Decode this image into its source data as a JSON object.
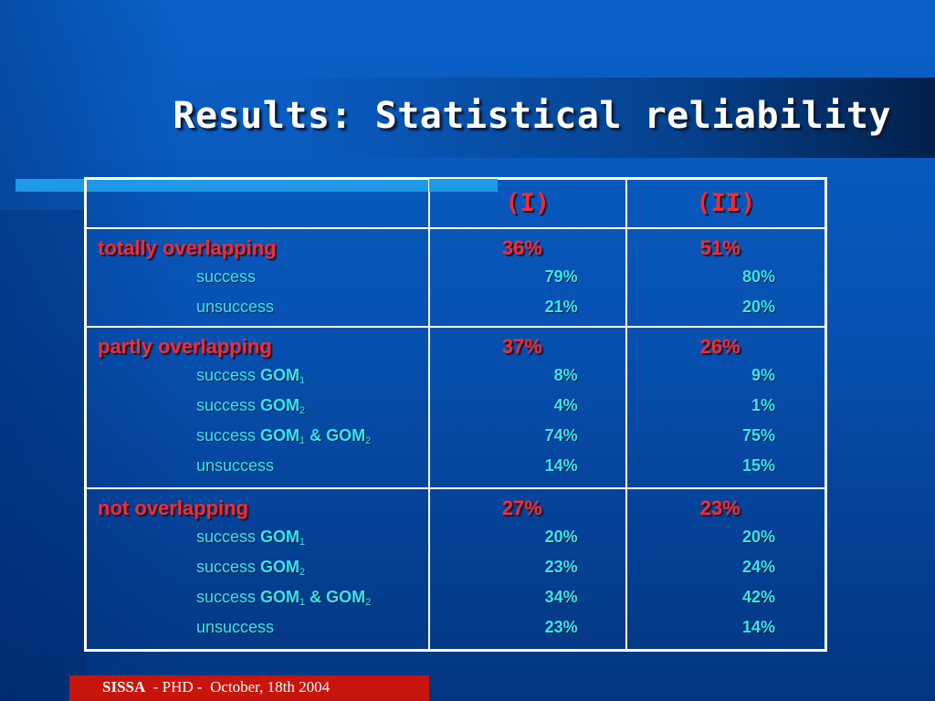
{
  "slide": {
    "title": "Results: Statistical reliability",
    "footer_org": "SISSA",
    "footer_rest": "  - PHD -  October, 18th 2004"
  },
  "table": {
    "headers": [
      "",
      "(I)",
      "(II)"
    ],
    "sections": [
      {
        "label": "totally overlapping",
        "I": "36%",
        "II": "51%",
        "rows": [
          {
            "pre": "success",
            "g1": "",
            "amp": "",
            "g2": "",
            "I": "79%",
            "II": "80%"
          },
          {
            "pre": "unsuccess",
            "g1": "",
            "amp": "",
            "g2": "",
            "I": "21%",
            "II": "20%"
          }
        ]
      },
      {
        "label": "partly overlapping",
        "I": "37%",
        "II": "26%",
        "rows": [
          {
            "pre": "success ",
            "g1": "GOM",
            "s1": "1",
            "amp": "",
            "g2": "",
            "s2": "",
            "I": "8%",
            "II": "9%"
          },
          {
            "pre": "success ",
            "g1": "GOM",
            "s1": "2",
            "amp": "",
            "g2": "",
            "s2": "",
            "I": "4%",
            "II": "1%"
          },
          {
            "pre": "success ",
            "g1": "GOM",
            "s1": "1",
            "amp": " & ",
            "g2": "GOM",
            "s2": "2",
            "I": "74%",
            "II": "75%"
          },
          {
            "pre": "unsuccess",
            "g1": "",
            "amp": "",
            "g2": "",
            "I": "14%",
            "II": "15%"
          }
        ]
      },
      {
        "label": "not overlapping",
        "I": "27%",
        "II": "23%",
        "rows": [
          {
            "pre": "success ",
            "g1": "GOM",
            "s1": "1",
            "amp": "",
            "g2": "",
            "s2": "",
            "I": "20%",
            "II": "20%"
          },
          {
            "pre": "success ",
            "g1": "GOM",
            "s1": "2",
            "amp": "",
            "g2": "",
            "s2": "",
            "I": "23%",
            "II": "24%"
          },
          {
            "pre": "success ",
            "g1": "GOM",
            "s1": "1",
            "amp": " & ",
            "g2": "GOM",
            "s2": "2",
            "I": "34%",
            "II": "42%"
          },
          {
            "pre": "unsuccess",
            "g1": "",
            "amp": "",
            "g2": "",
            "I": "23%",
            "II": "14%"
          }
        ]
      }
    ]
  },
  "colors": {
    "background": "#0752b3",
    "category_text": "#ff2a2a",
    "sub_text": "#34e8f0",
    "footer_bg": "#c8150c",
    "accent_line": "#1f9ae8"
  }
}
